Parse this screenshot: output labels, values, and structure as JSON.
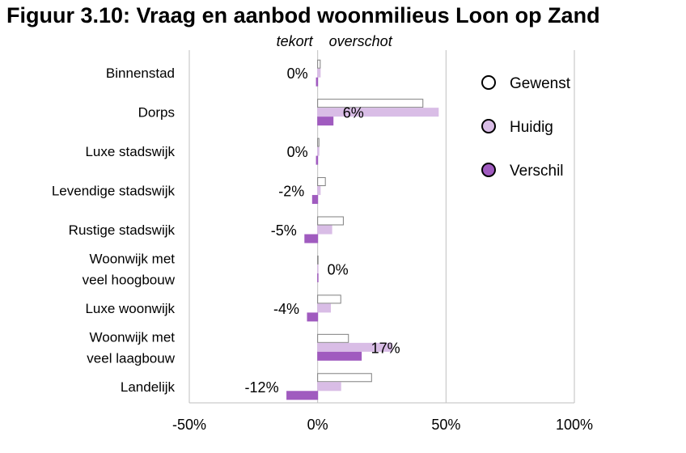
{
  "chart_data": {
    "type": "bar",
    "orientation": "horizontal",
    "title": "Figuur 3.10: Vraag en aanbod woonmilieus Loon op Zand",
    "side_labels": {
      "negative": "tekort",
      "positive": "overschot"
    },
    "categories": [
      [
        "Binnenstad"
      ],
      [
        "Dorps"
      ],
      [
        "Luxe stadswijk"
      ],
      [
        "Levendige stadswijk"
      ],
      [
        "Rustige stadswijk"
      ],
      [
        "Woonwijk met",
        "veel hoogbouw"
      ],
      [
        "Luxe woonwijk"
      ],
      [
        "Woonwijk met",
        "veel laagbouw"
      ],
      [
        "Landelijk"
      ]
    ],
    "series": [
      {
        "name": "Gewenst",
        "color": "#ffffff",
        "stroke": "#7f7f7f",
        "values": [
          1,
          41,
          0.5,
          3,
          10,
          0,
          9,
          12,
          21
        ]
      },
      {
        "name": "Huidig",
        "color": "#d9bde6",
        "stroke": "#d9bde6",
        "values": [
          1,
          47,
          0.5,
          1,
          5.5,
          0,
          5,
          29,
          9
        ]
      },
      {
        "name": "Verschil",
        "color": "#a05bbf",
        "stroke": "#a05bbf",
        "values": [
          -0.5,
          6,
          -0.5,
          -2,
          -5,
          0,
          -4,
          17,
          -12
        ]
      }
    ],
    "data_labels": [
      "0%",
      "6%",
      "0%",
      "-2%",
      "-5%",
      "0%",
      "-4%",
      "17%",
      "-12%"
    ],
    "x_ticks": [
      -50,
      0,
      50,
      100
    ],
    "x_tick_labels": [
      "-50%",
      "0%",
      "50%",
      "100%"
    ],
    "xlim": [
      -50,
      100
    ],
    "grid": true,
    "legend": "right"
  }
}
